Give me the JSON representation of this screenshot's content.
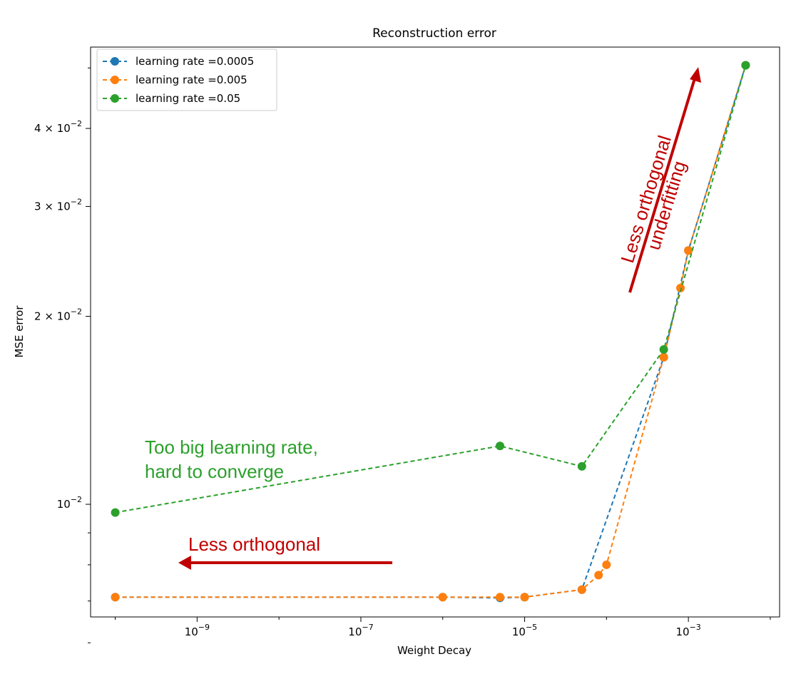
{
  "chart_data": {
    "type": "line",
    "title": "Reconstruction error",
    "xlabel": "Weight Decay",
    "ylabel": "MSE error",
    "xscale": "log",
    "yscale": "log",
    "xlim": [
      5e-11,
      0.013
    ],
    "ylim": [
      0.0066,
      0.054
    ],
    "x_ticks": [
      {
        "value": 1e-09,
        "base": "10",
        "exp": "−9"
      },
      {
        "value": 1e-07,
        "base": "10",
        "exp": "−7"
      },
      {
        "value": 1e-05,
        "base": "10",
        "exp": "−5"
      },
      {
        "value": 0.001,
        "base": "10",
        "exp": "−3"
      }
    ],
    "y_ticks": [
      {
        "value": 0.01,
        "coef": "",
        "base": "10",
        "exp": "−2"
      },
      {
        "value": 0.02,
        "coef": "2 × ",
        "base": "10",
        "exp": "−2"
      },
      {
        "value": 0.03,
        "coef": "3 × ",
        "base": "10",
        "exp": "−2"
      },
      {
        "value": 0.04,
        "coef": "4 × ",
        "base": "10",
        "exp": "−2"
      }
    ],
    "y_minor_ticks": [
      0.006,
      0.007,
      0.008,
      0.009,
      0.05
    ],
    "legend_position": "top-left",
    "grid": false,
    "series": [
      {
        "name": "learning rate =0.0005",
        "color": "#1f77b4",
        "points": [
          [
            1e-10,
            0.0071
          ],
          [
            1e-06,
            0.0071
          ],
          [
            5e-06,
            0.00708
          ],
          [
            1e-05,
            0.0071
          ],
          [
            5e-05,
            0.0073
          ],
          [
            0.0005,
            0.0172
          ],
          [
            0.001,
            0.0255
          ],
          [
            0.005,
            0.0505
          ]
        ]
      },
      {
        "name": "learning rate =0.005",
        "color": "#ff7f0e",
        "points": [
          [
            1e-10,
            0.0071
          ],
          [
            1e-06,
            0.0071
          ],
          [
            5e-06,
            0.0071
          ],
          [
            1e-05,
            0.0071
          ],
          [
            5e-05,
            0.0073
          ],
          [
            8e-05,
            0.0077
          ],
          [
            0.0001,
            0.008
          ],
          [
            0.0005,
            0.0172
          ],
          [
            0.0008,
            0.0222
          ],
          [
            0.001,
            0.0255
          ],
          [
            0.005,
            0.0505
          ]
        ]
      },
      {
        "name": "learning rate =0.05",
        "color": "#2ca02c",
        "points": [
          [
            1e-10,
            0.0097
          ],
          [
            5e-06,
            0.0124
          ],
          [
            5e-05,
            0.0115
          ],
          [
            0.0005,
            0.0177
          ],
          [
            0.005,
            0.0505
          ]
        ]
      }
    ],
    "annotations": [
      {
        "id": "green-note",
        "lines": [
          "Too big learning rate,",
          "hard to converge"
        ],
        "color": "#2ca02c"
      },
      {
        "id": "red-left-note",
        "lines": [
          "Less orthogonal"
        ],
        "color": "#c00000"
      },
      {
        "id": "red-up-note",
        "lines": [
          "Less orthogonal",
          "underfitting"
        ],
        "color": "#c00000"
      }
    ]
  }
}
